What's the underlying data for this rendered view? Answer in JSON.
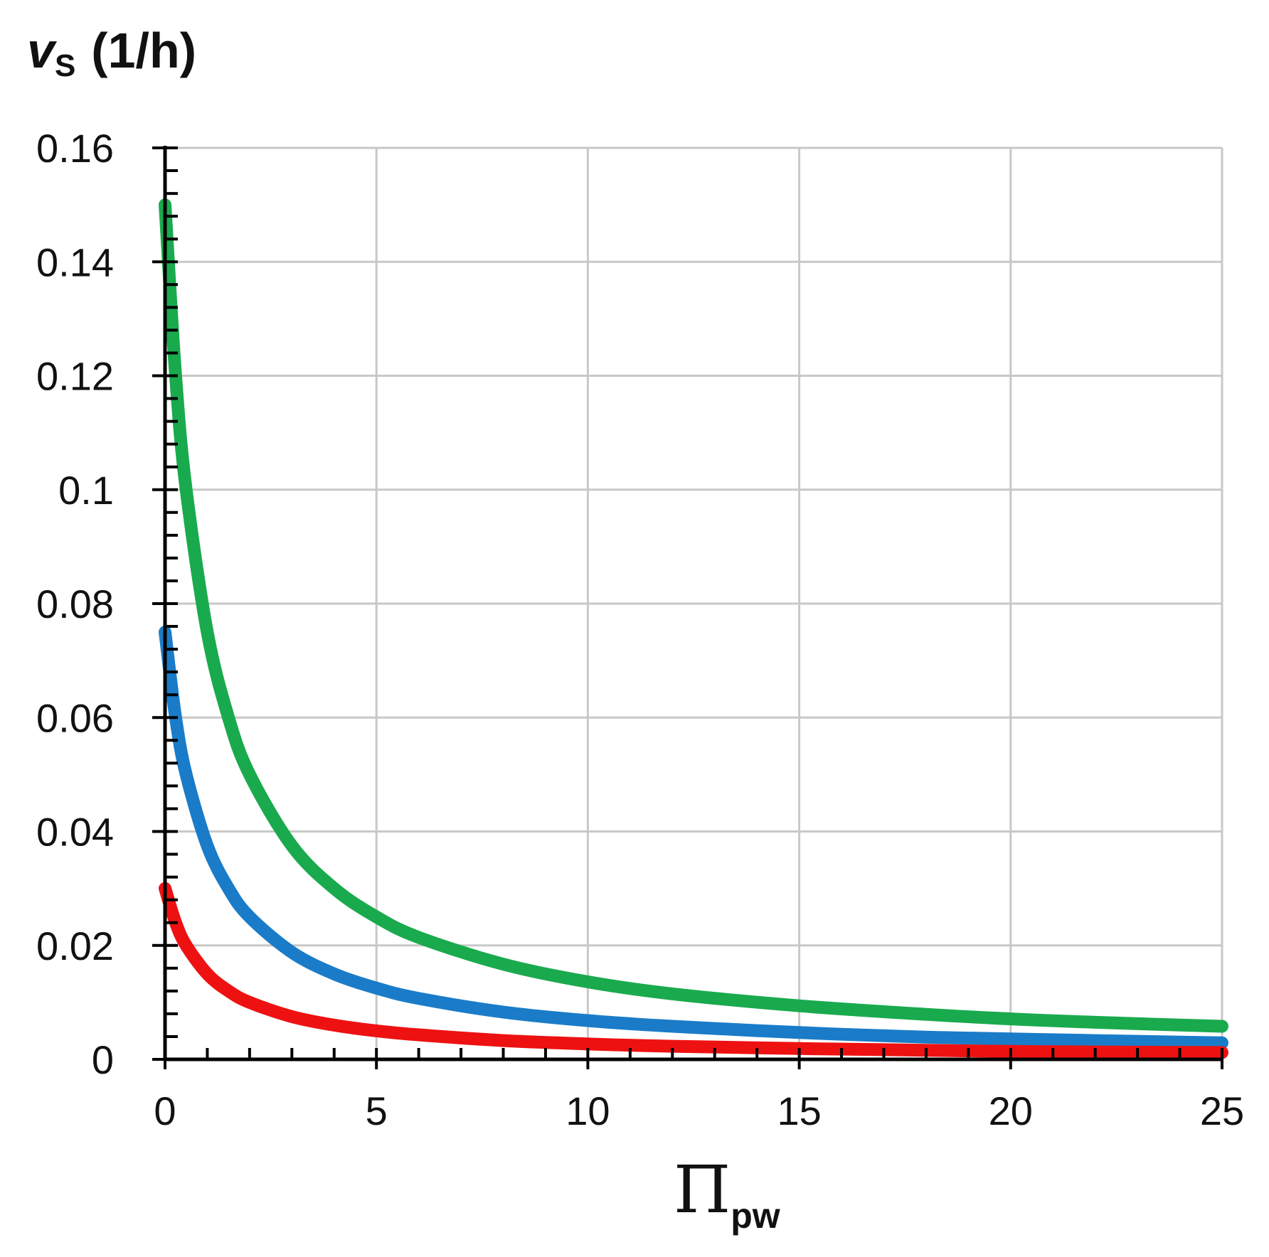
{
  "chart_data": {
    "type": "line",
    "title": "",
    "ylabel": {
      "symbol": "v",
      "subscript": "S",
      "unit": "(1/h)"
    },
    "xlabel": {
      "symbol": "Π",
      "subscript": "pw"
    },
    "xlim": [
      0,
      25
    ],
    "ylim": [
      0,
      0.16
    ],
    "x_ticks": [
      {
        "value": 0,
        "label": "0"
      },
      {
        "value": 5,
        "label": "5"
      },
      {
        "value": 10,
        "label": "10"
      },
      {
        "value": 15,
        "label": "15"
      },
      {
        "value": 20,
        "label": "20"
      },
      {
        "value": 25,
        "label": "25"
      }
    ],
    "y_ticks": [
      {
        "value": 0,
        "label": "0"
      },
      {
        "value": 0.02,
        "label": "0.02"
      },
      {
        "value": 0.04,
        "label": "0.04"
      },
      {
        "value": 0.06,
        "label": "0.06"
      },
      {
        "value": 0.08,
        "label": "0.08"
      },
      {
        "value": 0.1,
        "label": "0.1"
      },
      {
        "value": 0.12,
        "label": "0.12"
      },
      {
        "value": 0.14,
        "label": "0.14"
      },
      {
        "value": 0.16,
        "label": "0.16"
      }
    ],
    "grid": true,
    "legend": "none",
    "series": [
      {
        "color": "#1aaa4e",
        "x": [
          0,
          0.25,
          0.5,
          1,
          1.5,
          2,
          3,
          4,
          5,
          6,
          8,
          10,
          12,
          15,
          18,
          20,
          22,
          25
        ],
        "y": [
          0.15,
          0.12,
          0.1,
          0.075,
          0.06,
          0.05,
          0.0375,
          0.03,
          0.025,
          0.0214,
          0.0167,
          0.0136,
          0.0115,
          0.0094,
          0.0079,
          0.0071,
          0.0065,
          0.0058
        ]
      },
      {
        "color": "#1a7cc8",
        "x": [
          0,
          0.25,
          0.5,
          1,
          1.5,
          2,
          3,
          4,
          5,
          6,
          8,
          10,
          12,
          15,
          18,
          20,
          22,
          25
        ],
        "y": [
          0.075,
          0.06,
          0.05,
          0.0375,
          0.03,
          0.025,
          0.0188,
          0.015,
          0.0125,
          0.0107,
          0.0083,
          0.0068,
          0.0058,
          0.0047,
          0.0039,
          0.0036,
          0.0033,
          0.0029
        ]
      },
      {
        "color": "#ee1111",
        "x": [
          0,
          0.25,
          0.5,
          1,
          1.5,
          2,
          3,
          4,
          5,
          6,
          8,
          10,
          12,
          15,
          18,
          20,
          22,
          25
        ],
        "y": [
          0.03,
          0.024,
          0.02,
          0.015,
          0.012,
          0.01,
          0.0075,
          0.006,
          0.005,
          0.0043,
          0.0033,
          0.0027,
          0.0023,
          0.0019,
          0.0016,
          0.0014,
          0.0013,
          0.0012
        ]
      }
    ]
  }
}
